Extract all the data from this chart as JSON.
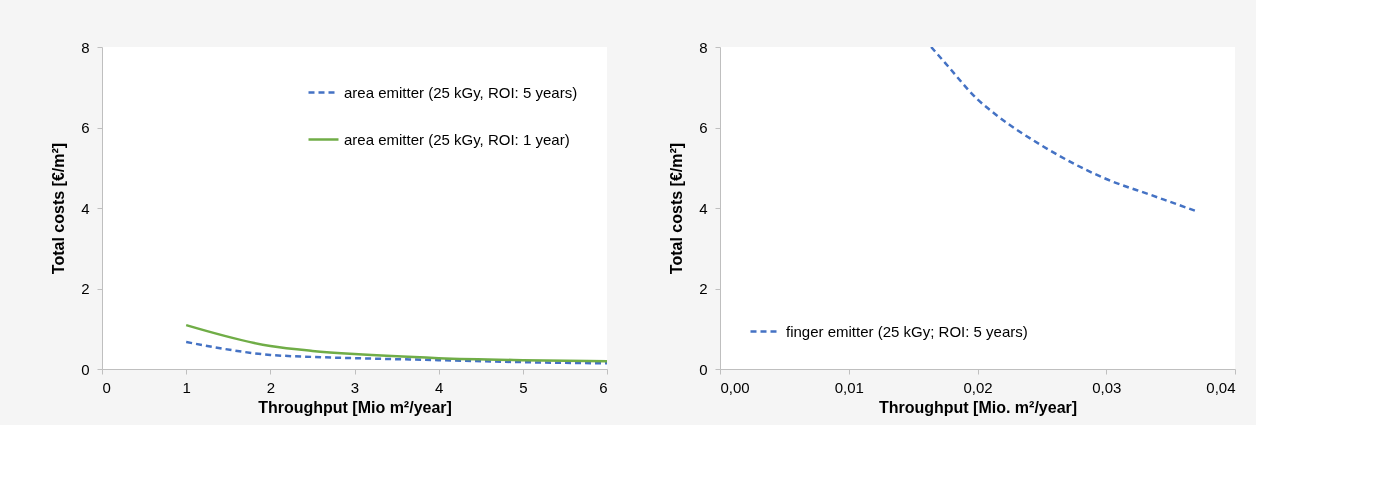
{
  "chart_data": [
    {
      "type": "line",
      "xlabel": "Throughput [Mio m²/year]",
      "ylabel": "Total costs [€/m²]",
      "xlim": [
        0,
        6
      ],
      "xticks": [
        0,
        1,
        2,
        3,
        4,
        5,
        6
      ],
      "ylim": [
        0,
        8
      ],
      "yticks": [
        0,
        2,
        4,
        6,
        8
      ],
      "grid": false,
      "legend": "top right",
      "marker": "none",
      "series": [
        {
          "name": "area emitter (25 kGy, ROI: 5 years)",
          "color": "#4472c4",
          "line_style": "dashed",
          "x": [
            1,
            2,
            2.5,
            3,
            4,
            5,
            6
          ],
          "values": [
            0.67,
            0.35,
            0.3,
            0.27,
            0.22,
            0.17,
            0.14
          ]
        },
        {
          "name": "area emitter (25 kGy, ROI: 1 year)",
          "color": "#70ad47",
          "line_style": "solid",
          "x": [
            1,
            2,
            2.5,
            3,
            4,
            5,
            6
          ],
          "values": [
            1.09,
            0.57,
            0.45,
            0.37,
            0.27,
            0.22,
            0.19
          ]
        }
      ]
    },
    {
      "type": "line",
      "xlabel": "Throughput [Mio. m²/year]",
      "ylabel": "Total costs [€/m²]",
      "xlim": [
        0,
        0.04
      ],
      "xticks": [
        {
          "value": 0,
          "label": "0,00"
        },
        {
          "value": 0.01,
          "label": "0,01"
        },
        {
          "value": 0.02,
          "label": "0,02"
        },
        {
          "value": 0.03,
          "label": "0,03"
        },
        {
          "value": 0.04,
          "label": "0,04"
        }
      ],
      "ylim": [
        0,
        8
      ],
      "yticks": [
        0,
        2,
        4,
        6,
        8
      ],
      "grid": false,
      "legend": "bottom left",
      "marker": "none",
      "series": [
        {
          "name": "finger emitter (25 kGy; ROI: 5 years)",
          "color": "#4472c4",
          "line_style": "dashed",
          "x": [
            0.0164,
            0.0175,
            0.02,
            0.0215,
            0.025,
            0.03,
            0.0335,
            0.037
          ],
          "values": [
            8.0,
            7.6,
            6.7,
            6.3,
            5.55,
            4.72,
            4.32,
            3.92
          ]
        }
      ]
    }
  ]
}
